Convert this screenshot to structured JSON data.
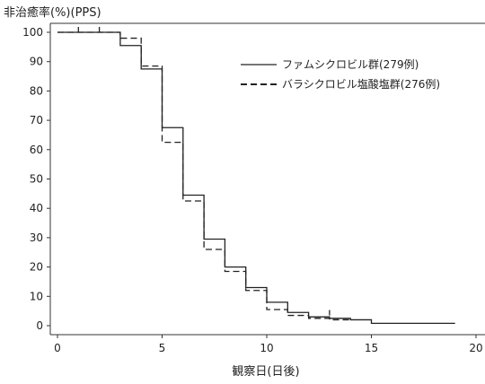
{
  "chart_data": {
    "type": "line",
    "step": true,
    "ylabel": "非治癒率(%)(PPS)",
    "xlabel": "観察日(日後)",
    "xlim": [
      0,
      20
    ],
    "ylim": [
      0,
      100
    ],
    "x_ticks": [
      "0",
      "5",
      "10",
      "15",
      "20"
    ],
    "y_ticks": [
      "0",
      "10",
      "20",
      "30",
      "40",
      "50",
      "60",
      "70",
      "80",
      "90",
      "100"
    ],
    "grid": false,
    "legend_position": "top-right",
    "series": [
      {
        "name": "ファムシクロビル群(279例)",
        "style": "solid",
        "color": "#222222",
        "steps": [
          [
            0,
            100
          ],
          [
            3,
            95.5
          ],
          [
            4,
            87.5
          ],
          [
            5,
            67.5
          ],
          [
            6,
            44.5
          ],
          [
            7,
            29.5
          ],
          [
            8,
            20
          ],
          [
            9,
            13
          ],
          [
            10,
            8
          ],
          [
            11,
            4.5
          ],
          [
            12,
            3
          ],
          [
            13,
            2.5
          ],
          [
            14,
            2
          ],
          [
            15,
            0.8
          ],
          [
            19,
            0.8
          ]
        ],
        "censored": [
          [
            1,
            100
          ],
          [
            2,
            100
          ]
        ]
      },
      {
        "name": "バラシクロビル塩酸塩群(276例)",
        "style": "dashed",
        "color": "#222222",
        "steps": [
          [
            0,
            100
          ],
          [
            3,
            98
          ],
          [
            4,
            88.5
          ],
          [
            5,
            62.5
          ],
          [
            6,
            42.5
          ],
          [
            7,
            26
          ],
          [
            8,
            18.5
          ],
          [
            9,
            12
          ],
          [
            10,
            5.5
          ],
          [
            11,
            3.5
          ],
          [
            12,
            2.5
          ],
          [
            13,
            2
          ],
          [
            14,
            2
          ]
        ],
        "censored": [
          [
            13,
            3.5
          ]
        ]
      }
    ]
  }
}
